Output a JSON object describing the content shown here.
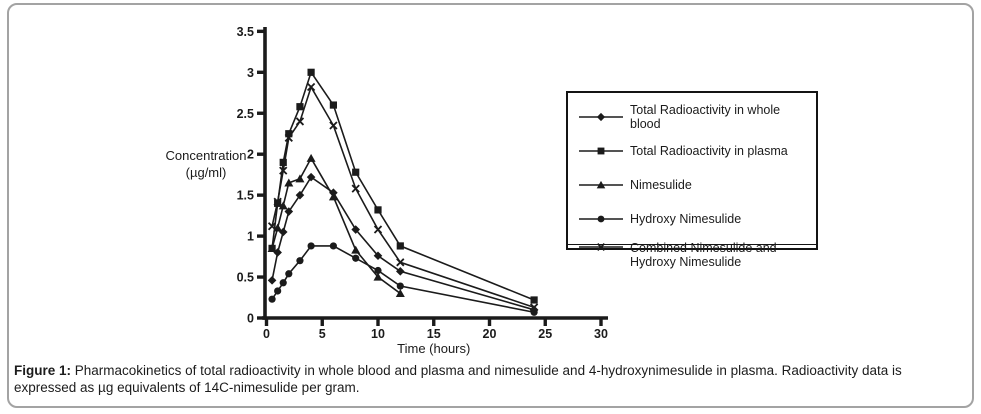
{
  "figure": {
    "caption_label": "Figure 1:",
    "caption_text": "Pharmacokinetics of total radioactivity in whole blood and plasma and nimesulide and 4-hydroxynimesulide in plasma. Radioactivity data is expressed as µg equivalents of 14C-nimesulide per gram."
  },
  "chart_data": {
    "type": "line",
    "title": "",
    "xlabel": "Time (hours)",
    "ylabel": "Concentration (µg/ml)",
    "ylabel_lines": [
      "Concentration",
      "(µg/ml)"
    ],
    "xlim": [
      0,
      30
    ],
    "ylim": [
      0,
      3.5
    ],
    "x_ticks": [
      0,
      5,
      10,
      15,
      20,
      25,
      30
    ],
    "x_tick_labels": [
      "0",
      "5",
      "10",
      "15",
      "20",
      "25",
      "30"
    ],
    "y_ticks": [
      0,
      0.5,
      1,
      1.5,
      2,
      2.5,
      3,
      3.5
    ],
    "y_tick_labels": [
      "0",
      "0.5",
      "1",
      "1.5",
      "2",
      "2.5",
      "3",
      "3.5"
    ],
    "grid": false,
    "legend_position": "right",
    "line_color": "#1b1b1b",
    "series": [
      {
        "name": "Total Radioactivity in whole blood",
        "marker": "diamond",
        "color": "#1b1b1b",
        "x": [
          0.5,
          1,
          1.5,
          2,
          3,
          4,
          6,
          8,
          10,
          12,
          24
        ],
        "y": [
          0.46,
          0.8,
          1.05,
          1.3,
          1.5,
          1.72,
          1.53,
          1.08,
          0.76,
          0.57,
          0.1
        ]
      },
      {
        "name": "Total Radioactivity in plasma",
        "marker": "square",
        "color": "#1b1b1b",
        "x": [
          0.5,
          1,
          1.5,
          2,
          3,
          4,
          6,
          8,
          10,
          12,
          24
        ],
        "y": [
          0.85,
          1.4,
          1.9,
          2.25,
          2.58,
          3.0,
          2.6,
          1.78,
          1.32,
          0.88,
          0.22
        ]
      },
      {
        "name": "Nimesulide",
        "marker": "triangle",
        "color": "#1b1b1b",
        "x": [
          0.5,
          1,
          1.5,
          2,
          3,
          4,
          6,
          8,
          10,
          12
        ],
        "y": [
          0.85,
          1.1,
          1.37,
          1.65,
          1.7,
          1.95,
          1.48,
          0.83,
          0.5,
          0.3
        ]
      },
      {
        "name": "Hydroxy Nimesulide",
        "marker": "circle",
        "color": "#1b1b1b",
        "x": [
          0.5,
          1,
          1.5,
          2,
          3,
          4,
          6,
          8,
          10,
          12,
          24
        ],
        "y": [
          0.23,
          0.33,
          0.43,
          0.54,
          0.7,
          0.88,
          0.88,
          0.73,
          0.58,
          0.39,
          0.07
        ]
      },
      {
        "name": "Combined Nimesulide and Hydroxy Nimesulide",
        "marker": "xmark",
        "color": "#1b1b1b",
        "x": [
          0.5,
          1,
          1.5,
          2,
          3,
          4,
          6,
          8,
          10,
          12,
          24
        ],
        "y": [
          1.12,
          1.42,
          1.8,
          2.2,
          2.4,
          2.82,
          2.35,
          1.58,
          1.08,
          0.68,
          0.13
        ]
      }
    ]
  }
}
